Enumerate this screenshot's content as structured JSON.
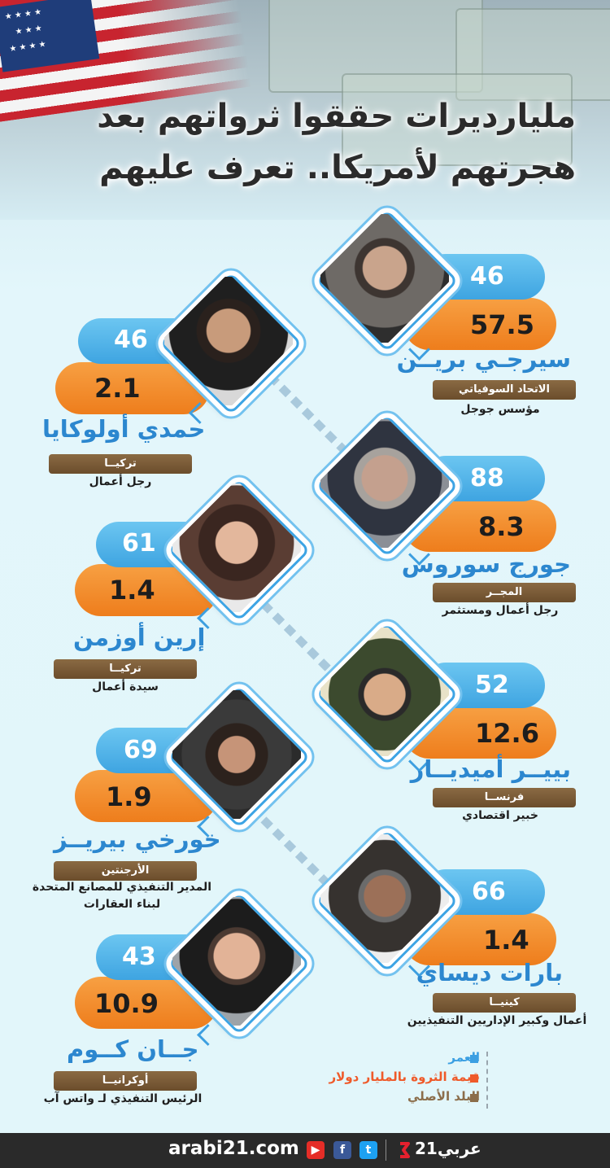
{
  "title": {
    "line1": "مليارديرات حققوا ثرواتهم بعد",
    "line2": "هجرتهم لأمريكا.. تعرف عليهم"
  },
  "people": [
    {
      "name": "سيرجـي بريــن",
      "age": "46",
      "worth": "57.5",
      "country": "الاتحاد السوفياتي",
      "job": "مؤسس جوجل"
    },
    {
      "name": "حمدي أولوكايا",
      "age": "46",
      "worth": "2.1",
      "country": "تركيــا",
      "job": "رجل أعمال"
    },
    {
      "name": "جورج سوروس",
      "age": "88",
      "worth": "8.3",
      "country": "المجــر",
      "job": "رجل أعمال ومستثمر"
    },
    {
      "name": "إرين أوزمن",
      "age": "61",
      "worth": "1.4",
      "country": "تركيــا",
      "job": "سيدة أعمال"
    },
    {
      "name": "بييــر أميديــار",
      "age": "52",
      "worth": "12.6",
      "country": "فرنســا",
      "job": "خبير اقتصادي"
    },
    {
      "name": "خورخي بيريــز",
      "age": "69",
      "worth": "1.9",
      "country": "الأرجنتين",
      "job": "المدير التنفيذي للمصانع المتحدة لبناء العقارات",
      "job_line1": "المدير التنفيذي للمصانع المتحدة",
      "job_line2": "لبناء العقارات"
    },
    {
      "name": "بارات ديساي",
      "age": "66",
      "worth": "1.4",
      "country": "كينيــا",
      "job": "أعمال وكبير الإداريين التنفيذيين"
    },
    {
      "name": "جــان كــوم",
      "age": "43",
      "worth": "10.9",
      "country": "أوكرانيــا",
      "job": "الرئيس التنفيذي لـ واتس آب"
    }
  ],
  "legend": {
    "age": "العمر",
    "worth": "قيمة الثروة بالمليار دولار",
    "country": "البلد الأصلي",
    "colors": {
      "age": "#3b9fe2",
      "worth": "#ef5a2a",
      "country": "#8b6d4a"
    }
  },
  "footer": {
    "site": "arabi21.com",
    "brand": "عربي21",
    "icons": [
      "youtube-icon",
      "facebook-icon",
      "twitter-icon"
    ]
  },
  "colors": {
    "name_blue": "#2c87cf",
    "age_pill": "#4cb0e8",
    "worth_pill": "#f08a26",
    "country_tag": "#7b5b38"
  }
}
